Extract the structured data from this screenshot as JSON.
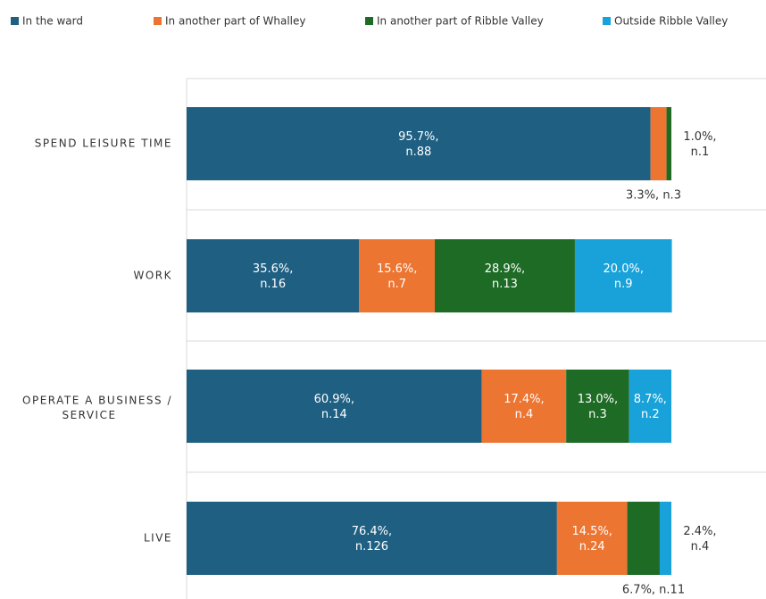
{
  "chart_data": {
    "type": "stacked-barh",
    "categories": [
      "SPEND LEISURE TIME",
      "WORK",
      "OPERATE A BUSINESS / SERVICE",
      "LIVE"
    ],
    "xlim": [
      0,
      100
    ],
    "series": [
      {
        "name": "In the ward",
        "color": "#1f5f82",
        "values": [
          95.7,
          35.6,
          60.9,
          76.4
        ],
        "value_labels": [
          "95.7%, n.88",
          "35.6%, n.16",
          "60.9%, n.14",
          "76.4%, n.126"
        ]
      },
      {
        "name": "In another part of Whalley",
        "color": "#ec7532",
        "values": [
          3.3,
          15.6,
          17.4,
          14.5
        ],
        "value_labels": [
          "3.3%, n.3",
          "15.6%, n.7",
          "17.4%, n.4",
          "14.5%, n.24"
        ]
      },
      {
        "name": "In another part of Ribble Valley",
        "color": "#1e6b26",
        "values": [
          1.0,
          28.9,
          13.0,
          6.7
        ],
        "value_labels": [
          "1.0%, n.1",
          "28.9%, n.13",
          "13.0%, n.3",
          "6.7%, n.11"
        ]
      },
      {
        "name": "Outside Ribble Valley",
        "color": "#18a2d9",
        "values": [
          0,
          20.0,
          8.7,
          2.4
        ],
        "value_labels": [
          null,
          "20.0%, n.9",
          "8.7%, n.2",
          "2.4%, n.4"
        ]
      }
    ]
  }
}
